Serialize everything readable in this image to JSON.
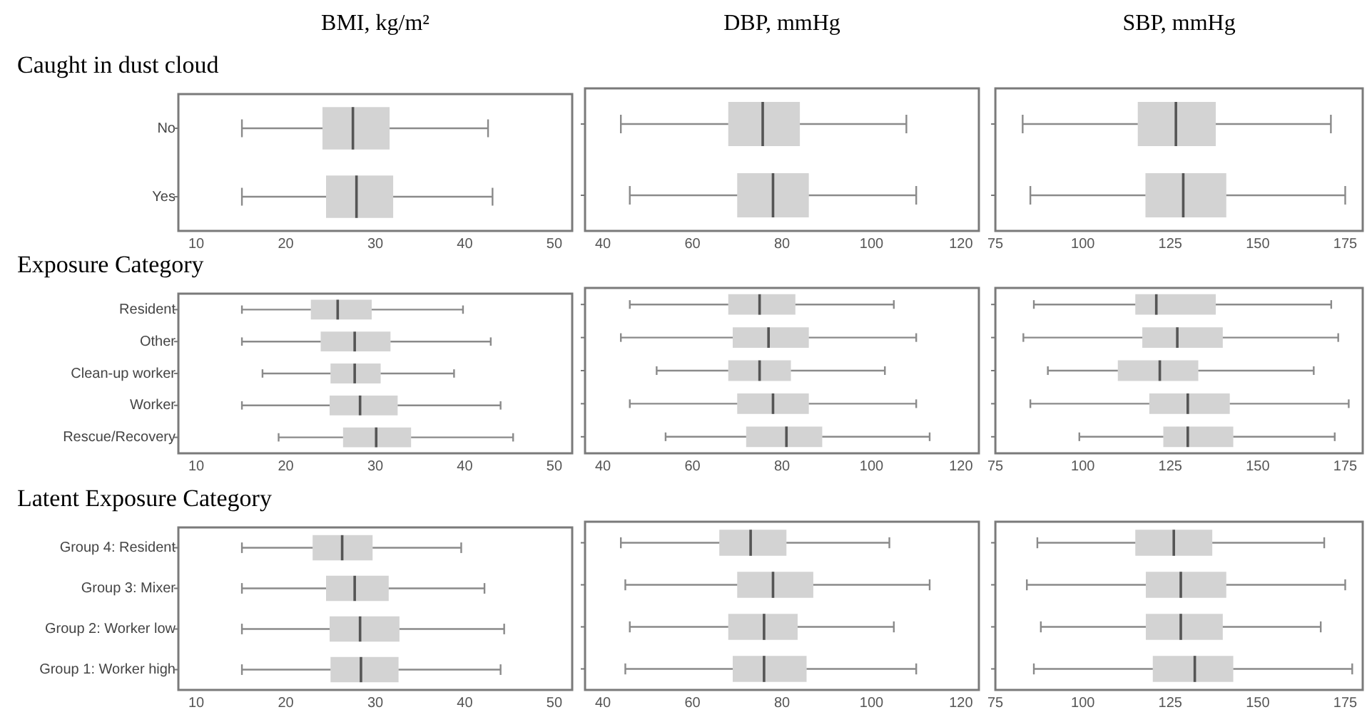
{
  "chart_data": [
    {
      "type": "box",
      "title": "Caught in dust cloud",
      "xlabel": "BMI, kg/m²",
      "orientation": "horizontal",
      "color": "#d3d3d3",
      "categories": [
        "No",
        "Yes"
      ],
      "boxes": [
        {
          "low": 15.1,
          "q1": 24.1,
          "median": 27.5,
          "q3": 31.6,
          "high": 42.6
        },
        {
          "low": 15.1,
          "q1": 24.5,
          "median": 27.9,
          "q3": 32.0,
          "high": 43.1
        }
      ],
      "xlim": [
        8,
        52
      ],
      "xticks": [
        10,
        20,
        30,
        40,
        50
      ]
    },
    {
      "type": "box",
      "xlabel": "DBP, mmHg",
      "orientation": "horizontal",
      "color": "#d3d3d3",
      "categories": [
        null,
        null
      ],
      "tick_labels": "x",
      "boxes": [
        {
          "low": 44,
          "q1": 68,
          "median": 75.7,
          "q3": 84,
          "high": 107.8
        },
        {
          "low": 46,
          "q1": 70,
          "median": 78,
          "q3": 86,
          "high": 110
        }
      ],
      "xlim": [
        36,
        124
      ],
      "xticks": [
        40,
        60,
        80,
        100,
        120
      ]
    },
    {
      "type": "box",
      "xlabel": "SBP, mmHg",
      "orientation": "horizontal",
      "color": "#d3d3d3",
      "categories": [
        null,
        null
      ],
      "tick_labels": "x",
      "boxes": [
        {
          "low": 82.8,
          "q1": 115.7,
          "median": 126.6,
          "q3": 138,
          "high": 170.9
        },
        {
          "low": 85,
          "q1": 117.9,
          "median": 128.7,
          "q3": 141,
          "high": 175
        }
      ],
      "xlim": [
        75,
        180
      ],
      "xticks": [
        75,
        100,
        125,
        150,
        175
      ]
    },
    {
      "type": "box",
      "title": "Exposure Category",
      "orientation": "horizontal",
      "color": "#d3d3d3",
      "categories": [
        "Resident",
        "Other",
        "Clean-up worker",
        "Worker",
        "Rescue/Recovery"
      ],
      "boxes": [
        {
          "low": 15.1,
          "q1": 22.8,
          "median": 25.8,
          "q3": 29.6,
          "high": 39.8
        },
        {
          "low": 15.1,
          "q1": 23.9,
          "median": 27.7,
          "q3": 31.7,
          "high": 42.9
        },
        {
          "low": 17.4,
          "q1": 25.0,
          "median": 27.7,
          "q3": 30.6,
          "high": 38.8
        },
        {
          "low": 15.1,
          "q1": 24.9,
          "median": 28.3,
          "q3": 32.5,
          "high": 44.0
        },
        {
          "low": 19.2,
          "q1": 26.4,
          "median": 30.1,
          "q3": 34.0,
          "high": 45.4
        }
      ],
      "xlim": [
        8,
        52
      ],
      "xticks": [
        10,
        20,
        30,
        40,
        50
      ]
    },
    {
      "type": "box",
      "orientation": "horizontal",
      "color": "#d3d3d3",
      "categories": [
        null,
        null,
        null,
        null,
        null
      ],
      "tick_labels": "x",
      "boxes": [
        {
          "low": 46,
          "q1": 68,
          "median": 75,
          "q3": 83,
          "high": 105
        },
        {
          "low": 44,
          "q1": 69,
          "median": 77,
          "q3": 86,
          "high": 110
        },
        {
          "low": 52,
          "q1": 68,
          "median": 75,
          "q3": 82,
          "high": 103
        },
        {
          "low": 46,
          "q1": 70,
          "median": 78,
          "q3": 86,
          "high": 110
        },
        {
          "low": 54,
          "q1": 72,
          "median": 81,
          "q3": 89,
          "high": 113
        }
      ],
      "xlim": [
        36,
        124
      ],
      "xticks": [
        40,
        60,
        80,
        100,
        120
      ]
    },
    {
      "type": "box",
      "orientation": "horizontal",
      "color": "#d3d3d3",
      "categories": [
        null,
        null,
        null,
        null,
        null
      ],
      "tick_labels": "x",
      "boxes": [
        {
          "low": 86,
          "q1": 115,
          "median": 121,
          "q3": 138,
          "high": 171
        },
        {
          "low": 83,
          "q1": 117,
          "median": 127,
          "q3": 140,
          "high": 173
        },
        {
          "low": 90,
          "q1": 110,
          "median": 122,
          "q3": 133,
          "high": 166
        },
        {
          "low": 85,
          "q1": 119,
          "median": 130,
          "q3": 142,
          "high": 176
        },
        {
          "low": 99,
          "q1": 123,
          "median": 130,
          "q3": 143,
          "high": 172
        }
      ],
      "xlim": [
        75,
        180
      ],
      "xticks": [
        75,
        100,
        125,
        150,
        175
      ]
    },
    {
      "type": "box",
      "title": "Latent Exposure Category",
      "orientation": "horizontal",
      "color": "#d3d3d3",
      "categories": [
        "Group 4: Resident",
        "Group 3: Mixer",
        "Group 2: Worker low",
        "Group 1: Worker high"
      ],
      "boxes": [
        {
          "low": 15.1,
          "q1": 23.0,
          "median": 26.3,
          "q3": 29.7,
          "high": 39.6
        },
        {
          "low": 15.1,
          "q1": 24.5,
          "median": 27.7,
          "q3": 31.5,
          "high": 42.2
        },
        {
          "low": 15.1,
          "q1": 24.9,
          "median": 28.3,
          "q3": 32.7,
          "high": 44.4
        },
        {
          "low": 15.1,
          "q1": 25.0,
          "median": 28.4,
          "q3": 32.6,
          "high": 44.0
        }
      ],
      "xlim": [
        8,
        52
      ],
      "xticks": [
        10,
        20,
        30,
        40,
        50
      ]
    },
    {
      "type": "box",
      "orientation": "horizontal",
      "color": "#d3d3d3",
      "categories": [
        null,
        null,
        null,
        null
      ],
      "tick_labels": "x",
      "boxes": [
        {
          "low": 44,
          "q1": 66,
          "median": 73,
          "q3": 81,
          "high": 104
        },
        {
          "low": 45,
          "q1": 70,
          "median": 78,
          "q3": 87,
          "high": 113
        },
        {
          "low": 46,
          "q1": 68,
          "median": 76,
          "q3": 83.5,
          "high": 105
        },
        {
          "low": 45,
          "q1": 69,
          "median": 76,
          "q3": 85.5,
          "high": 110
        }
      ],
      "xlim": [
        36,
        124
      ],
      "xticks": [
        40,
        60,
        80,
        100,
        120
      ]
    },
    {
      "type": "box",
      "orientation": "horizontal",
      "color": "#d3d3d3",
      "categories": [
        null,
        null,
        null,
        null
      ],
      "tick_labels": "x",
      "boxes": [
        {
          "low": 87,
          "q1": 115,
          "median": 126,
          "q3": 137,
          "high": 169
        },
        {
          "low": 84,
          "q1": 118,
          "median": 128,
          "q3": 141,
          "high": 175
        },
        {
          "low": 88,
          "q1": 118,
          "median": 128,
          "q3": 140,
          "high": 168
        },
        {
          "low": 86,
          "q1": 120,
          "median": 132,
          "q3": 143,
          "high": 177
        }
      ],
      "xlim": [
        75,
        180
      ],
      "xticks": [
        75,
        100,
        125,
        150,
        175
      ]
    }
  ]
}
